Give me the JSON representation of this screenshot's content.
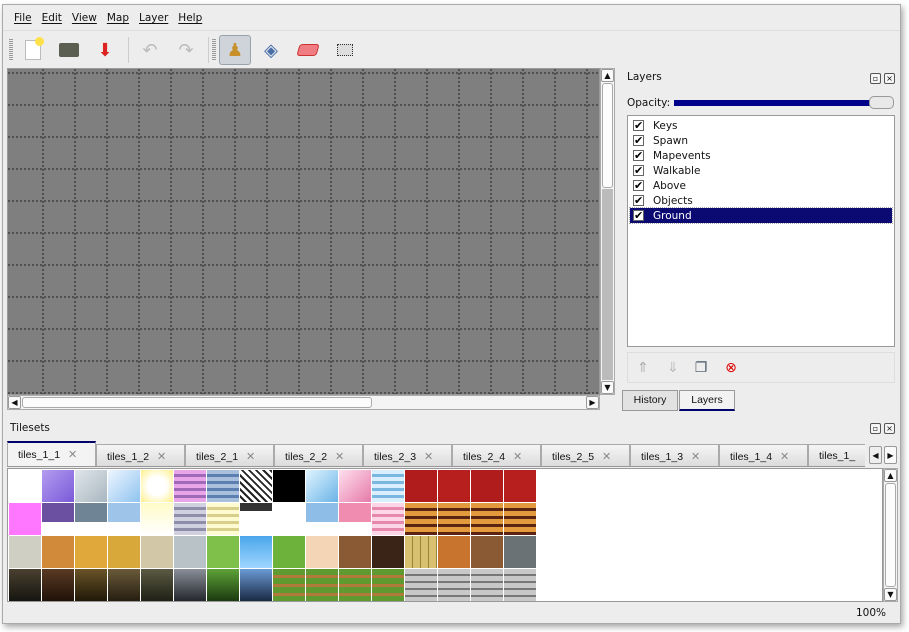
{
  "menu": [
    "File",
    "Edit",
    "View",
    "Map",
    "Layer",
    "Help"
  ],
  "toolbar": {
    "buttons": [
      {
        "name": "new-file-icon",
        "glyph": "📄"
      },
      {
        "name": "open-folder-icon",
        "glyph": "🗂"
      },
      {
        "name": "save-icon",
        "glyph": "💾"
      },
      {
        "name": "undo-icon",
        "glyph": "↶"
      },
      {
        "name": "redo-icon",
        "glyph": "↷"
      },
      {
        "name": "stamp-brush-icon",
        "glyph": "⛺",
        "active": true
      },
      {
        "name": "bucket-fill-icon",
        "glyph": "🪣"
      },
      {
        "name": "eraser-icon",
        "glyph": "▰"
      },
      {
        "name": "rect-select-icon",
        "glyph": "⬚"
      }
    ]
  },
  "layers_panel": {
    "title": "Layers",
    "opacity_label": "Opacity:",
    "opacity_value": 1.0,
    "layers": [
      {
        "name": "Keys",
        "visible": true
      },
      {
        "name": "Spawn",
        "visible": true
      },
      {
        "name": "Mapevents",
        "visible": true
      },
      {
        "name": "Walkable",
        "visible": true
      },
      {
        "name": "Above",
        "visible": true
      },
      {
        "name": "Objects",
        "visible": true
      },
      {
        "name": "Ground",
        "visible": true,
        "selected": true
      }
    ],
    "tools": [
      "raise-layer-icon",
      "lower-layer-icon",
      "duplicate-layer-icon",
      "remove-layer-icon"
    ]
  },
  "dock_tabs": [
    {
      "label": "History"
    },
    {
      "label": "Layers",
      "active": true
    }
  ],
  "tilesets": {
    "title": "Tilesets",
    "tabs": [
      "tiles_1_1",
      "tiles_1_2",
      "tiles_2_1",
      "tiles_2_2",
      "tiles_2_3",
      "tiles_2_4",
      "tiles_2_5",
      "tiles_1_3",
      "tiles_1_4",
      "tiles_1_"
    ],
    "active_tab": 0
  },
  "status": {
    "zoom": "100%"
  },
  "colors": {
    "selection": "#0a0a72",
    "accent": "#00006b",
    "map_bg": "#7f7f7f"
  }
}
